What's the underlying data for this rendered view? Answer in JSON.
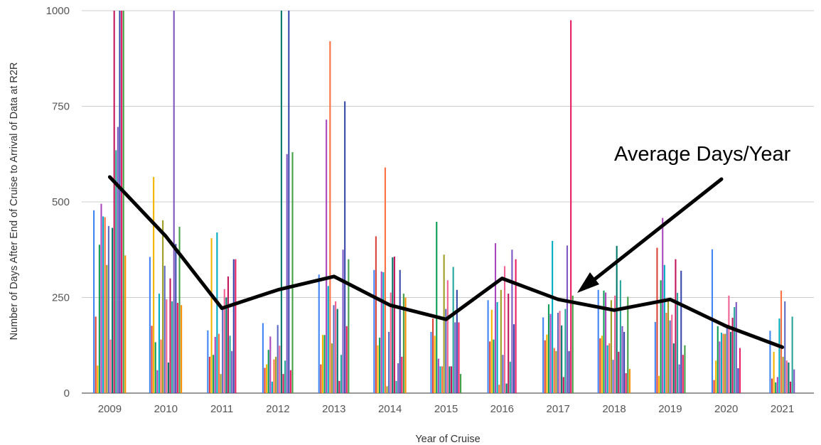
{
  "chart_data": {
    "type": "bar",
    "xlabel": "Year of Cruise",
    "ylabel": "Number of Days After End of Cruise to Arrival of Data at R2R",
    "ylim": [
      0,
      1000
    ],
    "yticks": [
      0,
      250,
      500,
      750,
      1000
    ],
    "grid": true,
    "categories": [
      "2009",
      "2010",
      "2011",
      "2012",
      "2013",
      "2014",
      "2015",
      "2016",
      "2017",
      "2018",
      "2019",
      "2020",
      "2021"
    ],
    "colors": [
      "#4285F4",
      "#DB4437",
      "#F4B400",
      "#0F9D58",
      "#AB47BC",
      "#00ACC1",
      "#FF7043",
      "#9E9D24",
      "#5C6BC0",
      "#F06292",
      "#00796B",
      "#C2185B",
      "#26A69A",
      "#7E57C2",
      "#3949AB",
      "#E91E63",
      "#43A047",
      "#FB8C00"
    ],
    "bars": [
      [
        478,
        200,
        72,
        388,
        495,
        462,
        460,
        335,
        437,
        140,
        432,
        1000,
        635,
        696,
        1000,
        1000,
        1000,
        360
      ],
      [
        356,
        176,
        565,
        133,
        60,
        260,
        140,
        452,
        333,
        245,
        80,
        300,
        240,
        1000,
        390,
        236,
        435,
        230
      ],
      [
        164,
        95,
        405,
        100,
        147,
        420,
        155,
        50,
        225,
        272,
        250,
        305,
        150,
        110,
        350,
        350
      ],
      [
        183,
        66,
        75,
        113,
        148,
        30,
        88,
        95,
        178,
        124,
        1000,
        50,
        85,
        625,
        1000,
        60,
        630
      ],
      [
        310,
        75,
        152,
        152,
        715,
        280,
        920,
        130,
        230,
        240,
        220,
        32,
        100,
        375,
        763,
        175,
        350
      ],
      [
        322,
        410,
        125,
        145,
        318,
        316,
        590,
        18,
        160,
        263,
        355,
        357,
        32,
        78,
        322,
        95,
        260,
        250
      ],
      [
        160,
        195,
        150,
        448,
        90,
        70,
        70,
        362,
        220,
        295,
        70,
        70,
        330,
        185,
        270,
        185,
        50
      ],
      [
        243,
        135,
        218,
        140,
        392,
        238,
        22,
        270,
        100,
        332,
        25,
        260,
        82,
        375,
        180,
        350
      ],
      [
        198,
        138,
        153,
        232,
        207,
        398,
        118,
        110,
        210,
        215,
        177,
        42,
        220,
        386,
        110,
        975,
        255
      ],
      [
        270,
        143,
        150,
        268,
        263,
        125,
        130,
        243,
        87,
        255,
        385,
        108,
        295,
        175,
        160,
        52,
        252,
        63
      ],
      [
        186,
        380,
        45,
        295,
        458,
        335,
        210,
        245,
        190,
        205,
        130,
        350,
        262,
        75,
        320,
        100,
        125
      ],
      [
        376,
        34,
        85,
        175,
        135,
        158,
        155,
        155,
        175,
        255,
        160,
        197,
        225,
        238,
        65,
        118
      ],
      [
        163,
        38,
        108,
        28,
        42,
        195,
        268,
        95,
        240,
        85,
        80,
        30,
        200,
        62
      ]
    ],
    "average_series": {
      "name": "Average Days/Year",
      "values": [
        565,
        410,
        222,
        270,
        305,
        230,
        193,
        300,
        245,
        217,
        245,
        175,
        120
      ]
    },
    "annotation": "Average Days/Year"
  }
}
